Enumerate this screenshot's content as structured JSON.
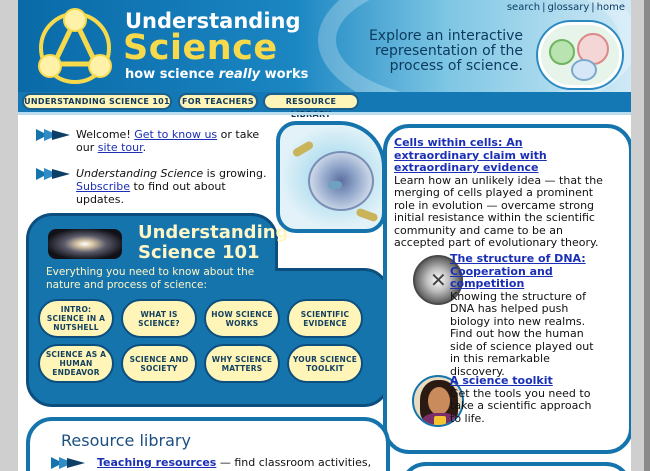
{
  "header": {
    "brand_line1": "Understanding",
    "brand_line2": "Science",
    "tagline_pre": "how science ",
    "tagline_em": "really",
    "tagline_post": " works",
    "top_links": [
      "search",
      "glossary",
      "home"
    ],
    "explore_text": "Explore an interactive representation of the process of science."
  },
  "nav": {
    "items": [
      "UNDERSTANDING SCIENCE 101",
      "FOR TEACHERS",
      "RESOURCE LIBRARY"
    ]
  },
  "welcome": {
    "line1_pre": "Welcome! ",
    "line1_link1": "Get to know us",
    "line1_mid": " or take our ",
    "line1_link2": "site tour",
    "line1_post": ".",
    "line2_em": "Understanding Science",
    "line2_text": " is growing.",
    "line2_link": "Subscribe",
    "line2_post": " to find out about updates."
  },
  "us101": {
    "title_line1": "Understanding",
    "title_line2": "Science 101",
    "description": "Everything you need to know about the nature and process of science:",
    "buttons": [
      "INTRO: SCIENCE IN A NUTSHELL",
      "WHAT IS SCIENCE?",
      "HOW SCIENCE WORKS",
      "SCIENTIFIC EVIDENCE",
      "SCIENCE AS A HUMAN ENDEAVOR",
      "SCIENCE AND SOCIETY",
      "WHY SCIENCE MATTERS",
      "YOUR SCIENCE TOOLKIT"
    ]
  },
  "features": [
    {
      "title": "Cells within cells: An extraordinary claim with extraordinary evidence",
      "text": "Learn how an unlikely idea — that the merging of cells played a prominent role in evolution — overcame strong initial resistance within the scientific community and came to be an accepted part of evolutionary theory."
    },
    {
      "title": "The structure of DNA: Cooperation and competition",
      "text": "Knowing the structure of DNA has helped push biology into new realms. Find out how the human side of science played out in this remarkable discovery."
    },
    {
      "title": "A science toolkit",
      "text": "Get the tools you need to take a scientific approach to life."
    }
  ],
  "resource_library": {
    "title": "Resource library",
    "row_link": "Teaching resources",
    "row_text": " — find classroom activities,"
  },
  "colors": {
    "brand_blue": "#1674ad",
    "brand_yellow": "#f7d94c",
    "pill_fill": "#fff5b8",
    "link": "#1a2fb5"
  }
}
